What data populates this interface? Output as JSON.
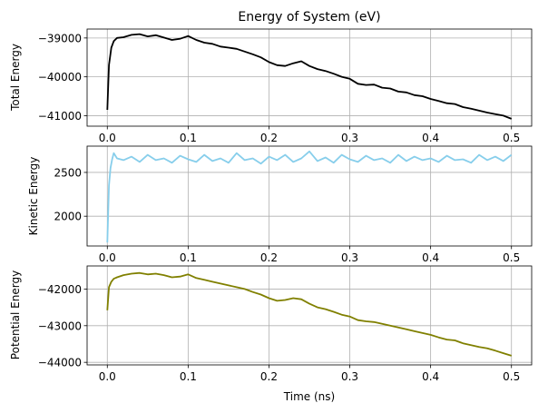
{
  "chart_data": [
    {
      "type": "line",
      "title": "Energy of System (eV)",
      "xlabel": "",
      "ylabel": "Total Energy",
      "xlim": [
        -0.025,
        0.525
      ],
      "ylim": [
        -41270,
        -38770
      ],
      "xticks": [
        0.0,
        0.1,
        0.2,
        0.3,
        0.4,
        0.5
      ],
      "xtick_labels": [
        "0.0",
        "0.1",
        "0.2",
        "0.3",
        "0.4",
        "0.5"
      ],
      "yticks": [
        -39000,
        -40000,
        -41000
      ],
      "ytick_labels": [
        "−39000",
        "−40000",
        "−41000"
      ],
      "grid": true,
      "color": "#000000",
      "series": [
        {
          "x": [
            0.0,
            0.002,
            0.005,
            0.008,
            0.012,
            0.02,
            0.03,
            0.04,
            0.05,
            0.06,
            0.07,
            0.08,
            0.09,
            0.1,
            0.11,
            0.12,
            0.13,
            0.14,
            0.15,
            0.16,
            0.17,
            0.18,
            0.19,
            0.2,
            0.21,
            0.22,
            0.23,
            0.24,
            0.25,
            0.26,
            0.27,
            0.28,
            0.29,
            0.3,
            0.31,
            0.32,
            0.33,
            0.34,
            0.35,
            0.36,
            0.37,
            0.38,
            0.39,
            0.4,
            0.41,
            0.42,
            0.43,
            0.44,
            0.45,
            0.46,
            0.47,
            0.48,
            0.49,
            0.5
          ],
          "y": [
            -40850,
            -39700,
            -39250,
            -39080,
            -39000,
            -38980,
            -38920,
            -38900,
            -38960,
            -38930,
            -38990,
            -39050,
            -39020,
            -38950,
            -39050,
            -39120,
            -39150,
            -39220,
            -39250,
            -39280,
            -39350,
            -39420,
            -39500,
            -39620,
            -39700,
            -39720,
            -39650,
            -39600,
            -39720,
            -39800,
            -39850,
            -39920,
            -40000,
            -40050,
            -40180,
            -40210,
            -40200,
            -40280,
            -40300,
            -40380,
            -40400,
            -40470,
            -40500,
            -40570,
            -40620,
            -40680,
            -40700,
            -40780,
            -40820,
            -40870,
            -40920,
            -40960,
            -41000,
            -41080
          ]
        }
      ]
    },
    {
      "type": "line",
      "title": "",
      "xlabel": "",
      "ylabel": "Kinetic Energy",
      "xlim": [
        -0.025,
        0.525
      ],
      "ylim": [
        1660,
        2800
      ],
      "xticks": [
        0.0,
        0.1,
        0.2,
        0.3,
        0.4,
        0.5
      ],
      "xtick_labels": [
        "0.0",
        "0.1",
        "0.2",
        "0.3",
        "0.4",
        "0.5"
      ],
      "yticks": [
        2500,
        2000
      ],
      "ytick_labels": [
        "2500",
        "2000"
      ],
      "grid": true,
      "color": "#87ceeb",
      "series": [
        {
          "x": [
            0.0,
            0.002,
            0.004,
            0.006,
            0.008,
            0.012,
            0.02,
            0.03,
            0.04,
            0.05,
            0.06,
            0.07,
            0.08,
            0.09,
            0.1,
            0.11,
            0.12,
            0.13,
            0.14,
            0.15,
            0.16,
            0.17,
            0.18,
            0.19,
            0.2,
            0.21,
            0.22,
            0.23,
            0.24,
            0.25,
            0.26,
            0.27,
            0.28,
            0.29,
            0.3,
            0.31,
            0.32,
            0.33,
            0.34,
            0.35,
            0.36,
            0.37,
            0.38,
            0.39,
            0.4,
            0.41,
            0.42,
            0.43,
            0.44,
            0.45,
            0.46,
            0.47,
            0.48,
            0.49,
            0.5
          ],
          "y": [
            1700,
            2350,
            2550,
            2650,
            2720,
            2660,
            2640,
            2680,
            2620,
            2700,
            2640,
            2660,
            2610,
            2690,
            2650,
            2620,
            2700,
            2630,
            2660,
            2610,
            2720,
            2640,
            2660,
            2600,
            2680,
            2640,
            2700,
            2620,
            2660,
            2740,
            2630,
            2670,
            2610,
            2700,
            2650,
            2620,
            2690,
            2640,
            2660,
            2610,
            2700,
            2630,
            2680,
            2640,
            2660,
            2620,
            2690,
            2640,
            2650,
            2610,
            2700,
            2640,
            2680,
            2630,
            2700
          ]
        }
      ]
    },
    {
      "type": "line",
      "title": "",
      "xlabel": "Time (ns)",
      "ylabel": "Potential Energy",
      "xlim": [
        -0.025,
        0.525
      ],
      "ylim": [
        -44070,
        -41370
      ],
      "xticks": [
        0.0,
        0.1,
        0.2,
        0.3,
        0.4,
        0.5
      ],
      "xtick_labels": [
        "0.0",
        "0.1",
        "0.2",
        "0.3",
        "0.4",
        "0.5"
      ],
      "yticks": [
        -42000,
        -43000,
        -44000
      ],
      "ytick_labels": [
        "−42000",
        "−43000",
        "−44000"
      ],
      "grid": true,
      "color": "#808000",
      "series": [
        {
          "x": [
            0.0,
            0.002,
            0.005,
            0.008,
            0.012,
            0.02,
            0.03,
            0.04,
            0.05,
            0.06,
            0.07,
            0.08,
            0.09,
            0.1,
            0.11,
            0.12,
            0.13,
            0.14,
            0.15,
            0.16,
            0.17,
            0.18,
            0.19,
            0.2,
            0.21,
            0.22,
            0.23,
            0.24,
            0.25,
            0.26,
            0.27,
            0.28,
            0.29,
            0.3,
            0.31,
            0.32,
            0.33,
            0.34,
            0.35,
            0.36,
            0.37,
            0.38,
            0.39,
            0.4,
            0.41,
            0.42,
            0.43,
            0.44,
            0.45,
            0.46,
            0.47,
            0.48,
            0.49,
            0.5
          ],
          "y": [
            -42580,
            -41950,
            -41800,
            -41720,
            -41680,
            -41620,
            -41580,
            -41560,
            -41600,
            -41580,
            -41620,
            -41680,
            -41660,
            -41600,
            -41700,
            -41750,
            -41800,
            -41850,
            -41900,
            -41950,
            -42000,
            -42080,
            -42150,
            -42250,
            -42320,
            -42300,
            -42250,
            -42280,
            -42400,
            -42500,
            -42550,
            -42620,
            -42700,
            -42750,
            -42850,
            -42880,
            -42900,
            -42950,
            -43000,
            -43050,
            -43100,
            -43150,
            -43200,
            -43250,
            -43320,
            -43380,
            -43400,
            -43480,
            -43530,
            -43580,
            -43620,
            -43680,
            -43750,
            -43820
          ]
        }
      ]
    }
  ]
}
